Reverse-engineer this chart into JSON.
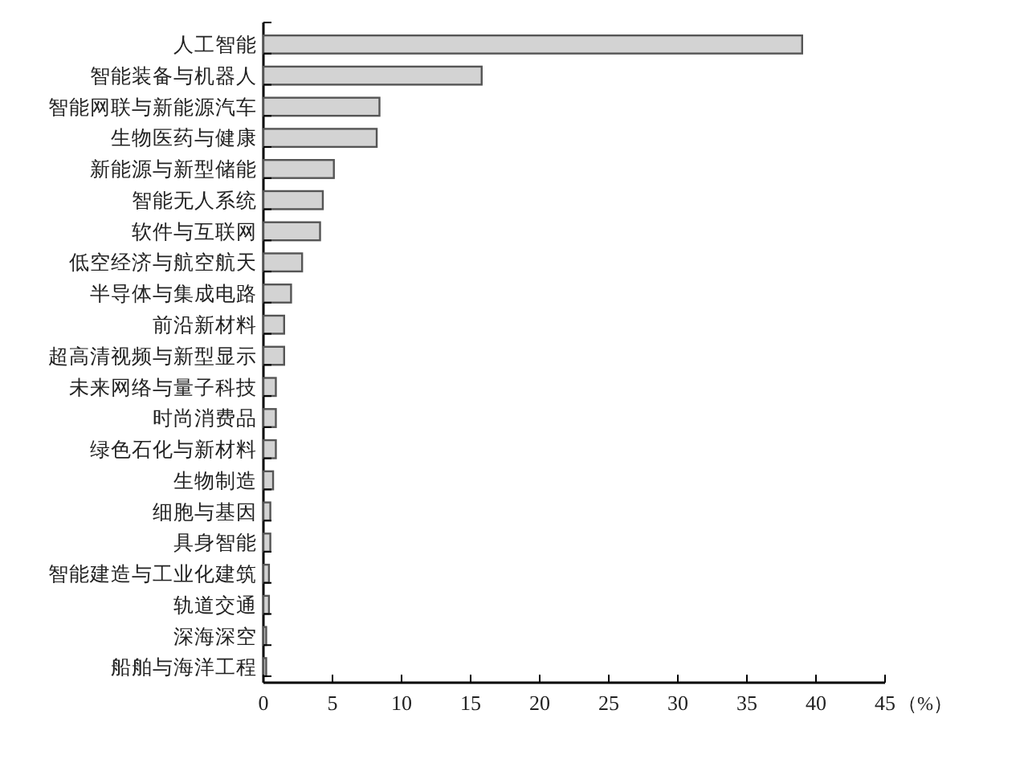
{
  "chart_data": {
    "type": "bar",
    "orientation": "horizontal",
    "xlabel": "（%）",
    "categories": [
      "人工智能",
      "智能装备与机器人",
      "智能网联与新能源汽车",
      "生物医药与健康",
      "新能源与新型储能",
      "智能无人系统",
      "软件与互联网",
      "低空经济与航空航天",
      "半导体与集成电路",
      "前沿新材料",
      "超高清视频与新型显示",
      "未来网络与量子科技",
      "时尚消费品",
      "绿色石化与新材料",
      "生物制造",
      "细胞与基因",
      "具身智能",
      "智能建造与工业化建筑",
      "轨道交通",
      "深海深空",
      "船舶与海洋工程"
    ],
    "values": [
      39.0,
      15.8,
      8.4,
      8.2,
      5.1,
      4.3,
      4.1,
      2.8,
      2.0,
      1.5,
      1.5,
      0.9,
      0.9,
      0.9,
      0.7,
      0.5,
      0.5,
      0.4,
      0.4,
      0.2,
      0.2
    ],
    "color": "#d3d3d3",
    "xlim": [
      0,
      45
    ],
    "xticks": [
      0,
      5,
      10,
      15,
      20,
      25,
      30,
      35,
      40,
      45
    ],
    "grid": false
  }
}
